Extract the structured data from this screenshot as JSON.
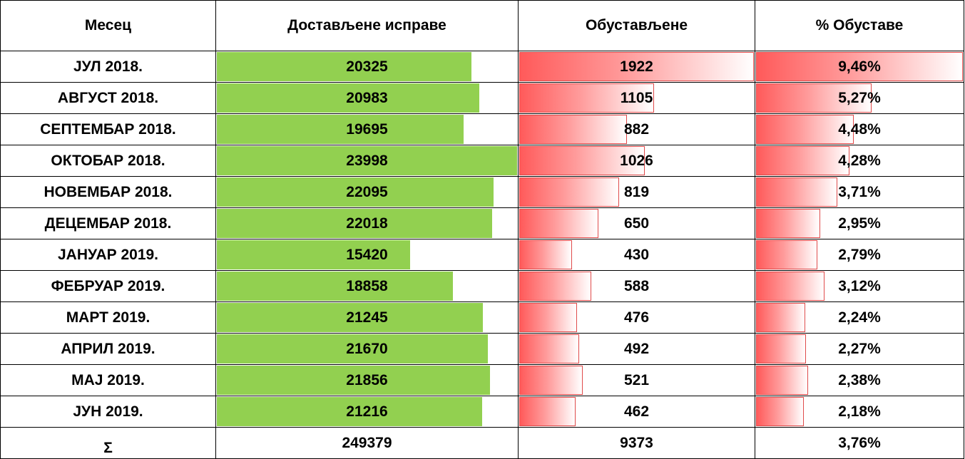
{
  "chart_data": {
    "type": "table",
    "headers": [
      "Месец",
      "Достављене исправе",
      "Обустављене",
      "% Обуставе"
    ],
    "rows": [
      {
        "month": "ЈУЛ 2018.",
        "delivered": 20325,
        "delivered_label": "20325",
        "suspended": 1922,
        "suspended_label": "1922",
        "pct": 9.46,
        "pct_label": "9,46%"
      },
      {
        "month": "АВГУСТ 2018.",
        "delivered": 20983,
        "delivered_label": "20983",
        "suspended": 1105,
        "suspended_label": "1105",
        "pct": 5.27,
        "pct_label": "5,27%"
      },
      {
        "month": "СЕПТЕМБАР 2018.",
        "delivered": 19695,
        "delivered_label": "19695",
        "suspended": 882,
        "suspended_label": "882",
        "pct": 4.48,
        "pct_label": "4,48%"
      },
      {
        "month": "ОКТОБАР 2018.",
        "delivered": 23998,
        "delivered_label": "23998",
        "suspended": 1026,
        "suspended_label": "1026",
        "pct": 4.28,
        "pct_label": "4,28%"
      },
      {
        "month": "НОВЕМБАР 2018.",
        "delivered": 22095,
        "delivered_label": "22095",
        "suspended": 819,
        "suspended_label": "819",
        "pct": 3.71,
        "pct_label": "3,71%"
      },
      {
        "month": "ДЕЦЕМБАР 2018.",
        "delivered": 22018,
        "delivered_label": "22018",
        "suspended": 650,
        "suspended_label": "650",
        "pct": 2.95,
        "pct_label": "2,95%"
      },
      {
        "month": "ЈАНУАР 2019.",
        "delivered": 15420,
        "delivered_label": "15420",
        "suspended": 430,
        "suspended_label": "430",
        "pct": 2.79,
        "pct_label": "2,79%"
      },
      {
        "month": "ФЕБРУАР 2019.",
        "delivered": 18858,
        "delivered_label": "18858",
        "suspended": 588,
        "suspended_label": "588",
        "pct": 3.12,
        "pct_label": "3,12%"
      },
      {
        "month": "МАРТ 2019.",
        "delivered": 21245,
        "delivered_label": "21245",
        "suspended": 476,
        "suspended_label": "476",
        "pct": 2.24,
        "pct_label": "2,24%"
      },
      {
        "month": "АПРИЛ 2019.",
        "delivered": 21670,
        "delivered_label": "21670",
        "suspended": 492,
        "suspended_label": "492",
        "pct": 2.27,
        "pct_label": "2,27%"
      },
      {
        "month": "МАЈ 2019.",
        "delivered": 21856,
        "delivered_label": "21856",
        "suspended": 521,
        "suspended_label": "521",
        "pct": 2.38,
        "pct_label": "2,38%"
      },
      {
        "month": "ЈУН 2019.",
        "delivered": 21216,
        "delivered_label": "21216",
        "suspended": 462,
        "suspended_label": "462",
        "pct": 2.18,
        "pct_label": "2,18%"
      }
    ],
    "total": {
      "month": "Σ",
      "delivered_label": "249379",
      "suspended_label": "9373",
      "pct_label": "3,76%"
    },
    "bar_colors": {
      "delivered": "#92d050",
      "suspended": "#ff5a5a",
      "pct": "#ff5a5a"
    }
  }
}
